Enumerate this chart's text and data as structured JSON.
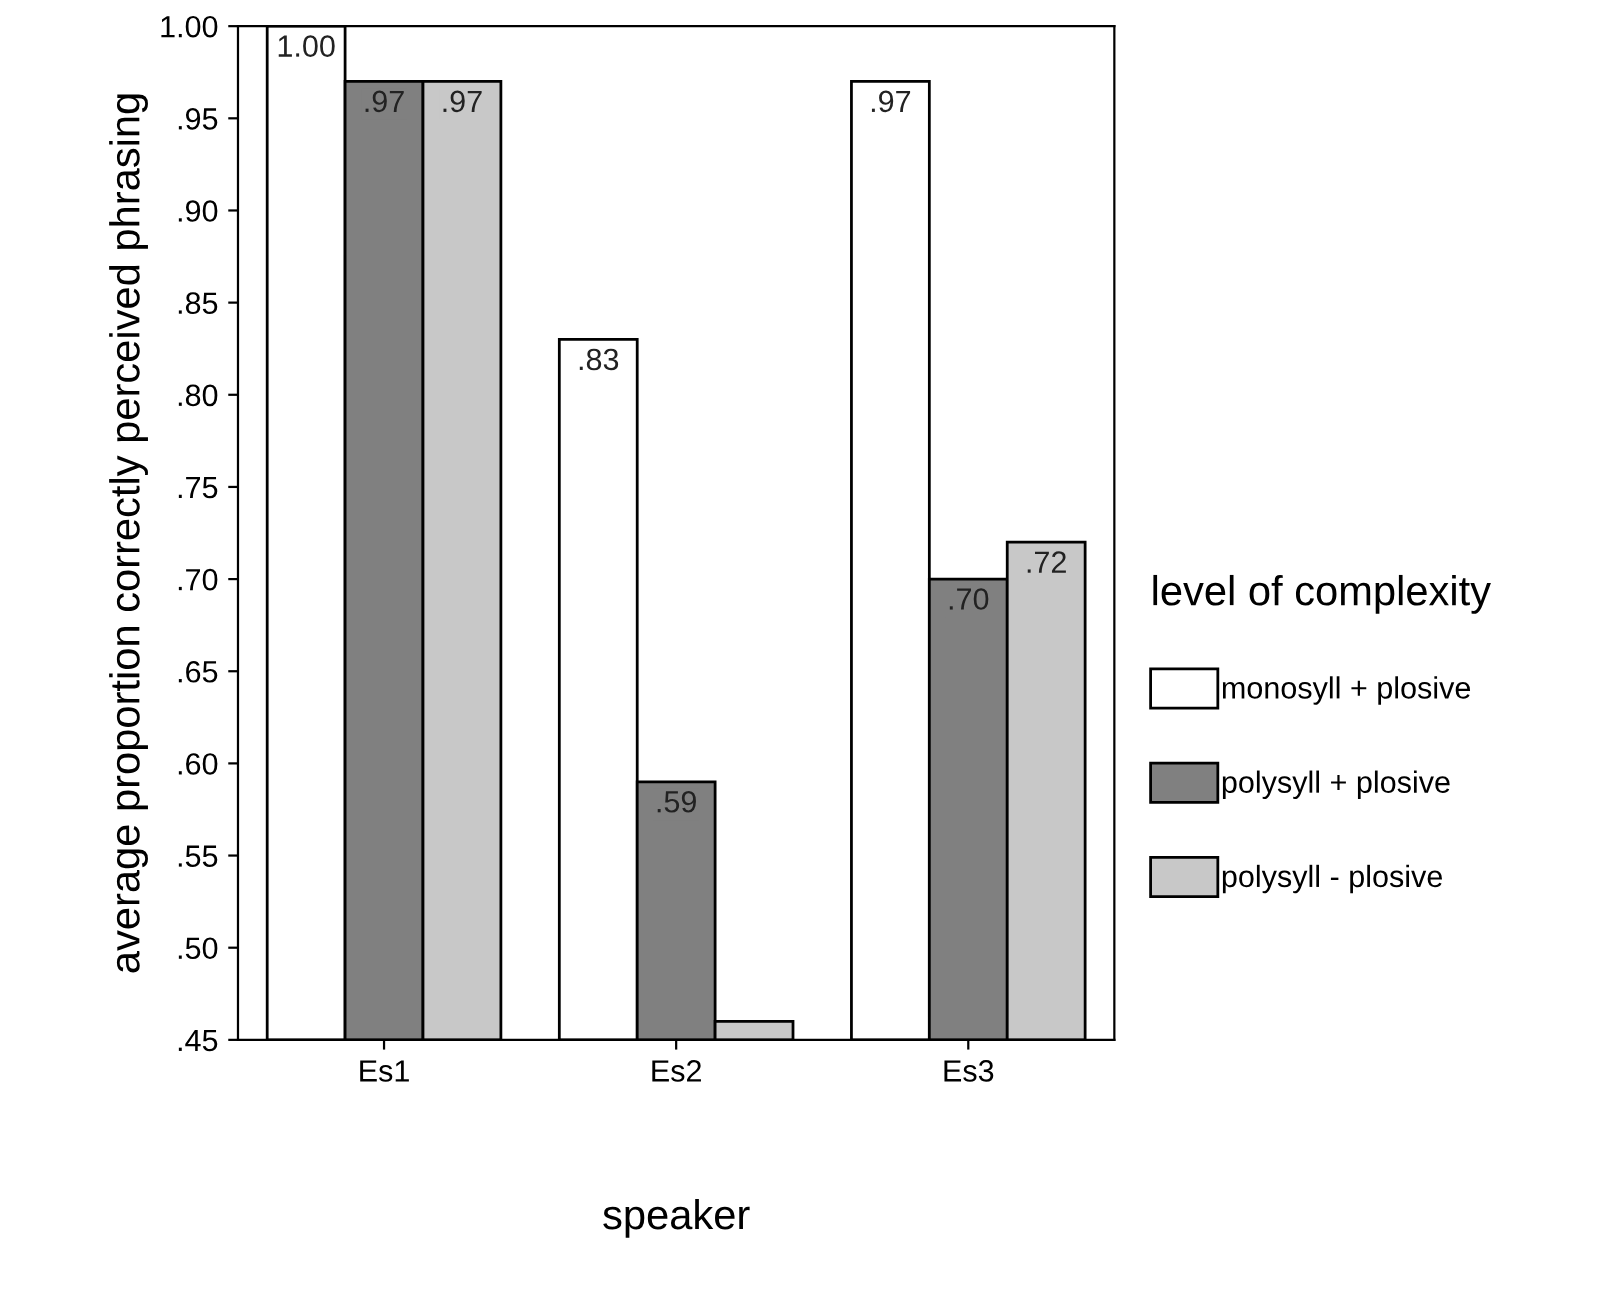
{
  "chart_data": {
    "type": "bar",
    "xlabel": "speaker",
    "ylabel": "average proportion correctly perceived phrasing",
    "legend_title": "level of complexity",
    "categories": [
      "Es1",
      "Es2",
      "Es3"
    ],
    "series": [
      {
        "name": "monosyll + plosive",
        "color": "#ffffff",
        "values": [
          1.0,
          0.83,
          0.97
        ],
        "value_labels": [
          "1.00",
          ".83",
          ".97"
        ]
      },
      {
        "name": "polysyll + plosive",
        "color": "#808080",
        "values": [
          0.97,
          0.59,
          0.7
        ],
        "value_labels": [
          ".97",
          ".59",
          ".70"
        ]
      },
      {
        "name": "polysyll - plosive",
        "color": "#c8c8c8",
        "values": [
          0.97,
          0.46,
          0.72
        ],
        "value_labels": [
          ".97",
          null,
          ".72"
        ]
      }
    ],
    "ylim": [
      0.45,
      1.0
    ],
    "yticks": [
      {
        "value": 0.45,
        "label": ".45"
      },
      {
        "value": 0.5,
        "label": ".50"
      },
      {
        "value": 0.55,
        "label": ".55"
      },
      {
        "value": 0.6,
        "label": ".60"
      },
      {
        "value": 0.65,
        "label": ".65"
      },
      {
        "value": 0.7,
        "label": ".70"
      },
      {
        "value": 0.75,
        "label": ".75"
      },
      {
        "value": 0.8,
        "label": ".80"
      },
      {
        "value": 0.85,
        "label": ".85"
      },
      {
        "value": 0.9,
        "label": ".90"
      },
      {
        "value": 0.95,
        "label": ".95"
      },
      {
        "value": 1.0,
        "label": "1.00"
      }
    ],
    "grid": false,
    "legend": "right"
  }
}
